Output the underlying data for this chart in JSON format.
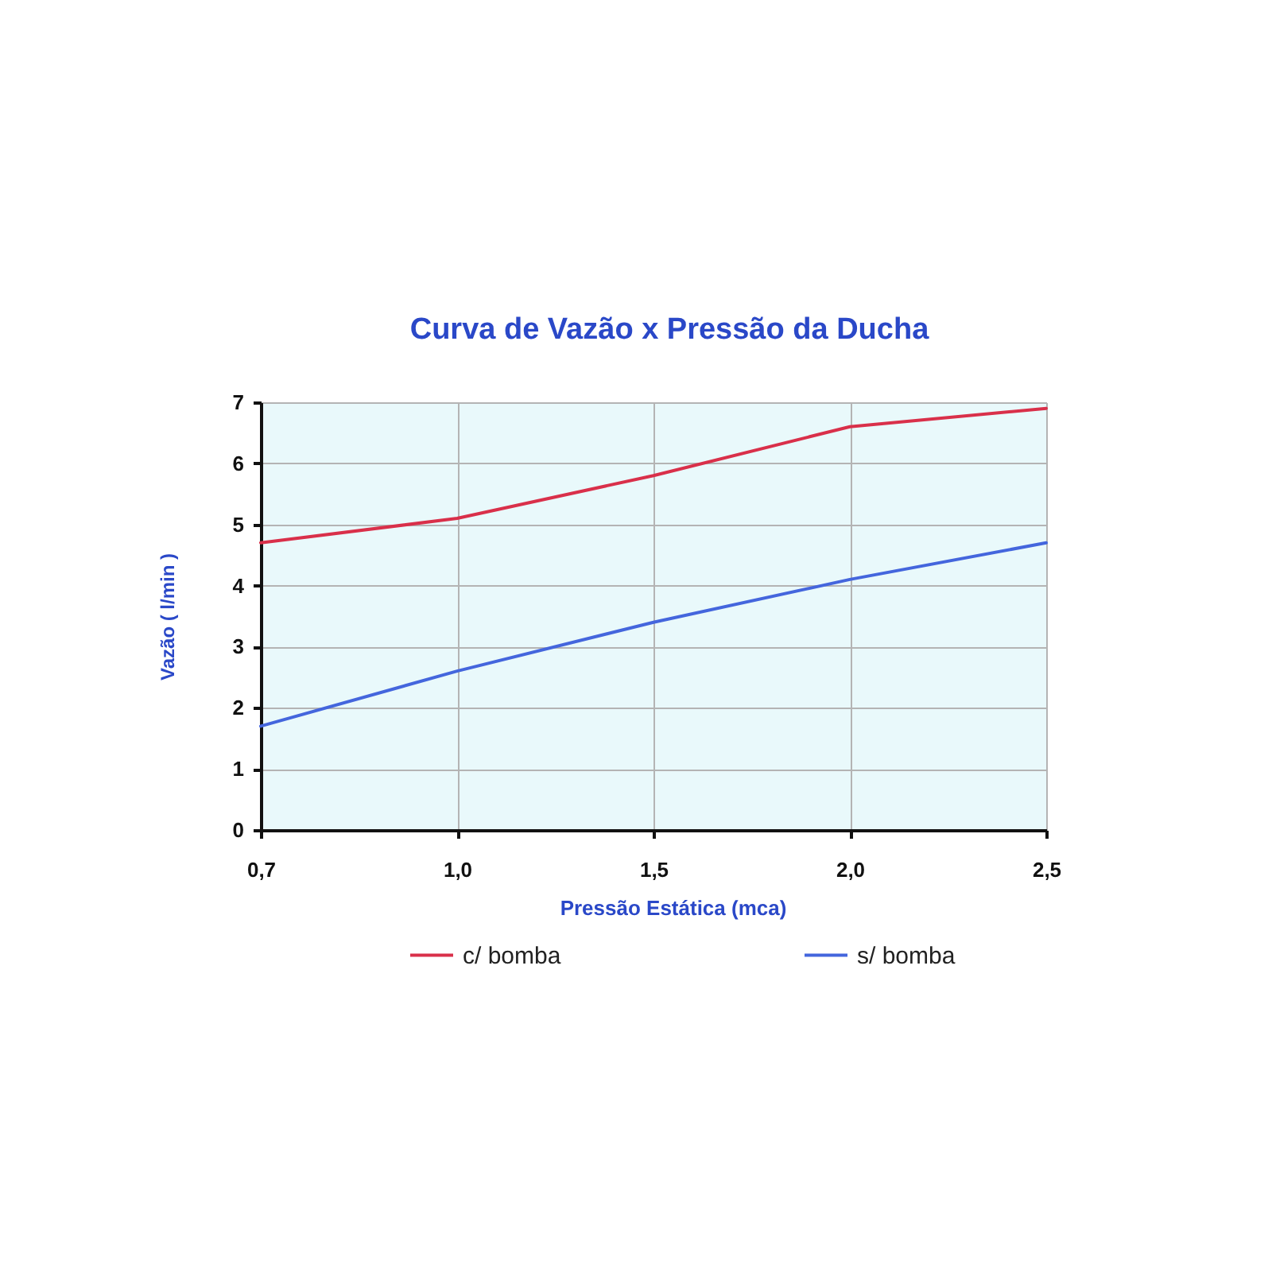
{
  "chart_data": {
    "type": "line",
    "title": "Curva de Vazão x Pressão da Ducha",
    "xlabel": "Pressão Estática (mca)",
    "ylabel": "Vazão ( l/min )",
    "categories": [
      "0,7",
      "1,0",
      "1,5",
      "2,0",
      "2,5"
    ],
    "series": [
      {
        "name": "c/ bomba",
        "color": "#d9304a",
        "values": [
          4.7,
          5.1,
          5.8,
          6.6,
          6.9
        ]
      },
      {
        "name": "s/ bomba",
        "color": "#4466dd",
        "values": [
          1.7,
          2.6,
          3.4,
          4.1,
          4.7
        ]
      }
    ],
    "ylim": [
      0,
      7
    ],
    "yticks": [
      0,
      1,
      2,
      3,
      4,
      5,
      6,
      7
    ],
    "grid": true,
    "legend": "bottom",
    "line_style": "solid"
  }
}
